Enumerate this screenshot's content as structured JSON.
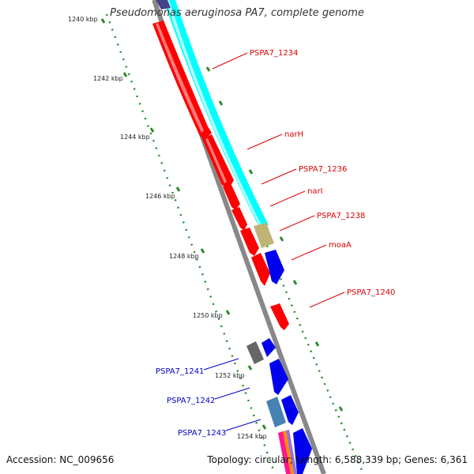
{
  "title": "Pseudomonas aeruginosa PA7, complete genome",
  "footer": {
    "accession": "Accession: NC_009656",
    "summary": "Topology: circular; Length: 6,588,339 bp; Genes: 6,361"
  },
  "ticks": [
    "1240 kbp",
    "1242 kbp",
    "1244 kbp",
    "1246 kbp",
    "1248 kbp",
    "1250 kbp",
    "1252 kbp",
    "1254 kbp"
  ],
  "forward_labels": [
    "PSPA7_1234",
    "narH",
    "PSPA7_1236",
    "narI",
    "PSPA7_1238",
    "moaA",
    "PSPA7_1240"
  ],
  "reverse_labels": [
    "PSPA7_1241",
    "PSPA7_1242",
    "PSPA7_1243"
  ],
  "colors": {
    "red": "#ff0000",
    "blue": "#0000ee",
    "cyan": "#00ffff",
    "olive": "#bdb476",
    "gray": "#666666",
    "steel": "#4682b4",
    "navy": "#444488",
    "backbone": "#888888",
    "tick": "#228b22",
    "label_red": "#dd0000",
    "label_blue": "#0000cc"
  }
}
